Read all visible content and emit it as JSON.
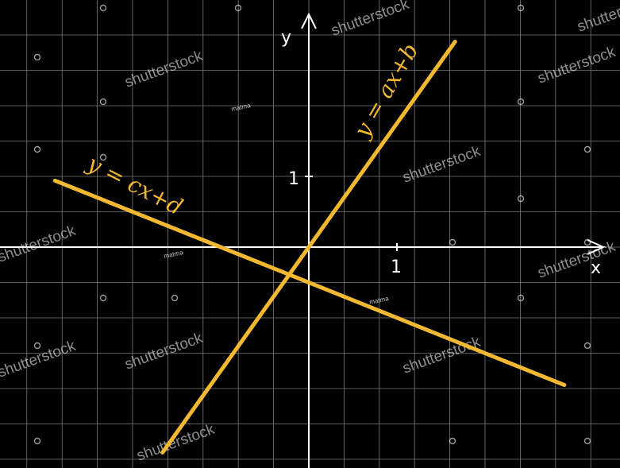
{
  "colors": {
    "background": "#000000",
    "grid": "#7a7a7a",
    "axis": "#ffffff",
    "line": "#f2b830"
  },
  "axes": {
    "x_label": "x",
    "y_label": "y",
    "x_tick": "1",
    "y_tick": "1"
  },
  "lines": [
    {
      "id": "line-ab",
      "equation": "y = ax+b",
      "slope": 1.75,
      "intercept": 0.0
    },
    {
      "id": "line-cd",
      "equation": "y = cx+d",
      "slope": -0.5,
      "intercept": -0.5
    }
  ],
  "watermarks": {
    "brand": "shutterstock",
    "small": "matma"
  }
}
